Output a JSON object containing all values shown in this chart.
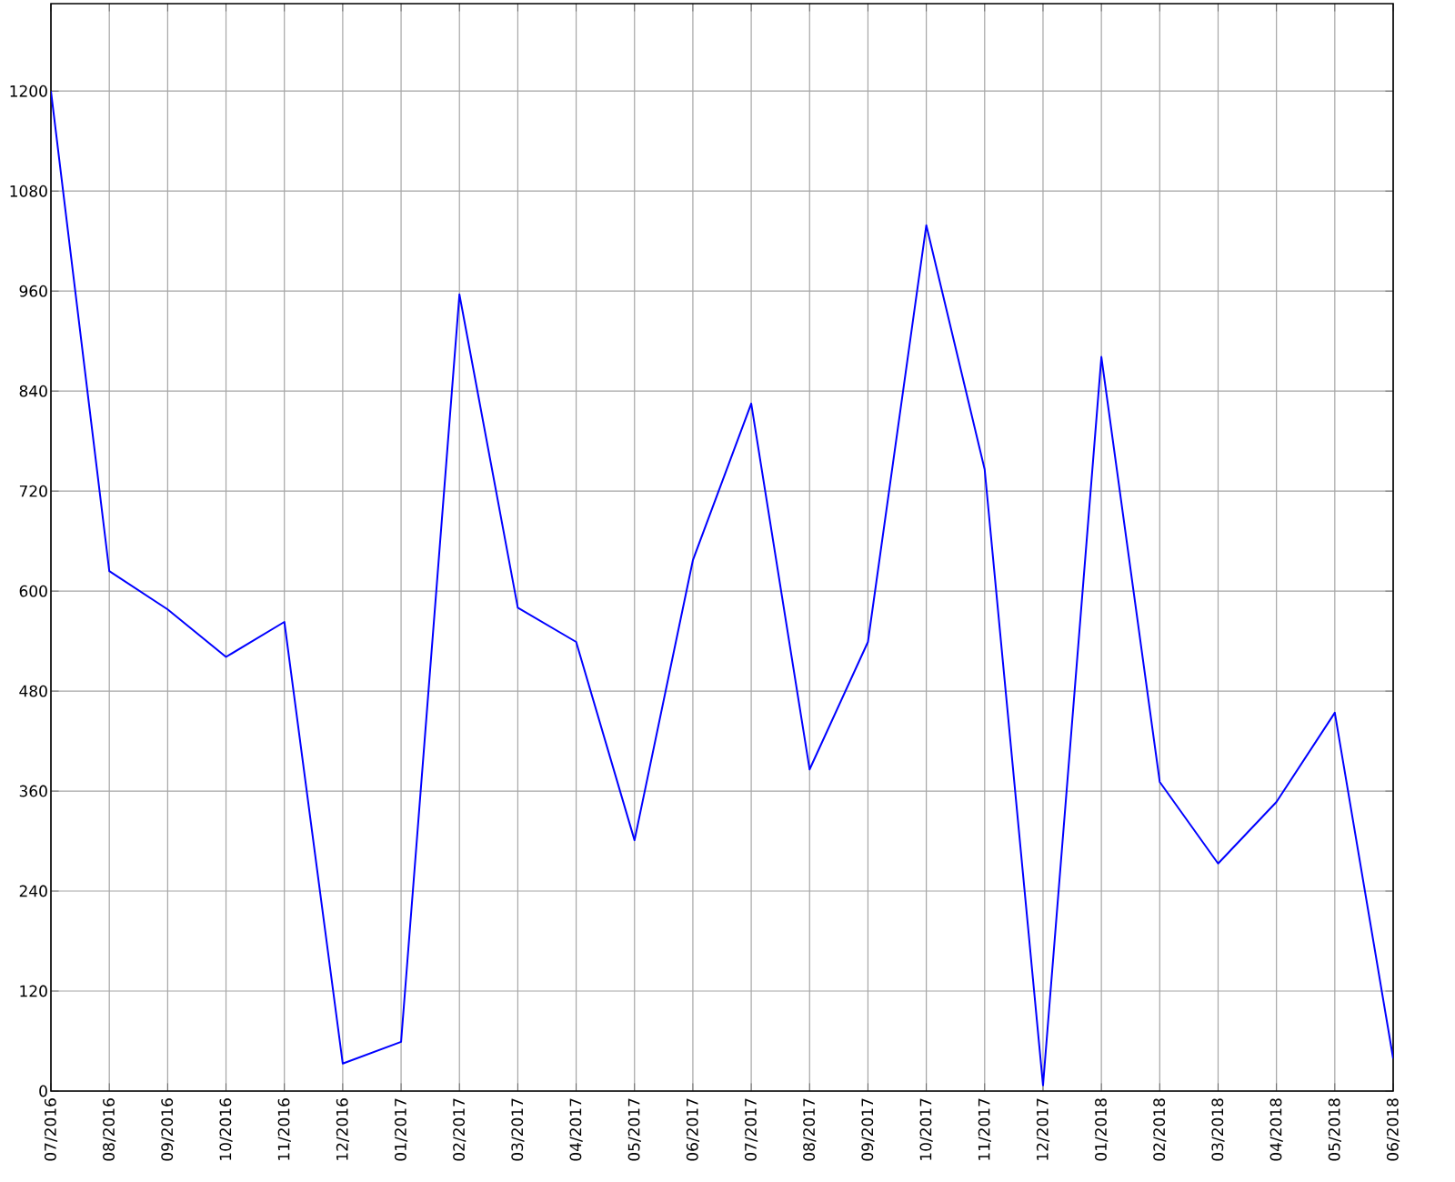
{
  "chart_data": {
    "type": "line",
    "categories": [
      "07/2016",
      "08/2016",
      "09/2016",
      "10/2016",
      "11/2016",
      "12/2016",
      "01/2017",
      "02/2017",
      "03/2017",
      "04/2017",
      "05/2017",
      "06/2017",
      "07/2017",
      "08/2017",
      "09/2017",
      "10/2017",
      "11/2017",
      "12/2017",
      "01/2018",
      "02/2018",
      "03/2018",
      "04/2018",
      "05/2018",
      "06/2018"
    ],
    "series": [
      {
        "color": "#0000ff",
        "values": [
          1200,
          624,
          578,
          521,
          563,
          33,
          59,
          956,
          580,
          539,
          301,
          637,
          825,
          386,
          539,
          1039,
          746,
          7,
          881,
          371,
          273,
          347,
          454,
          39
        ]
      }
    ],
    "ylim": [
      0,
      1305
    ],
    "yticks": [
      0,
      120,
      240,
      360,
      480,
      600,
      720,
      840,
      960,
      1080,
      1200
    ],
    "grid": true,
    "marker": "none",
    "line_style": "solid"
  }
}
